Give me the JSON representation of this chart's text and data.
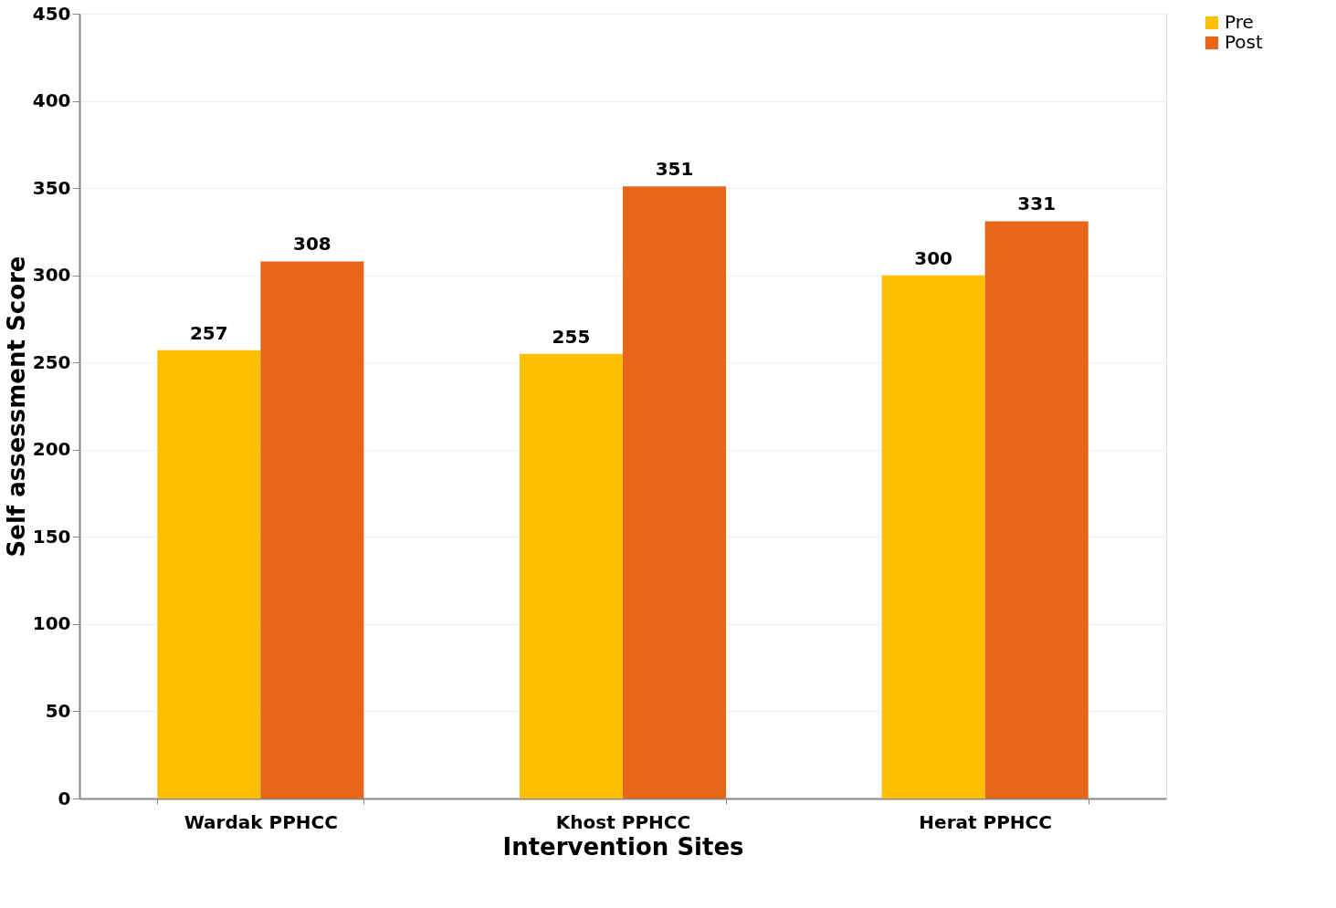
{
  "chart_data": {
    "type": "bar",
    "xlabel": "Intervention Sites",
    "ylabel": "Self assessment Score",
    "categories": [
      "Wardak PPHCC",
      "Khost PPHCC",
      "Herat PPHCC"
    ],
    "series": [
      {
        "name": "Pre",
        "color": "#fdc000",
        "values": [
          257,
          255,
          300
        ]
      },
      {
        "name": "Post",
        "color": "#e8661a",
        "values": [
          308,
          351,
          331
        ]
      }
    ],
    "ylim": [
      0,
      450
    ],
    "yticks": [
      0,
      50,
      100,
      150,
      200,
      250,
      300,
      350,
      400,
      450
    ],
    "grid": "y",
    "legend": "right",
    "data_labels": true
  }
}
